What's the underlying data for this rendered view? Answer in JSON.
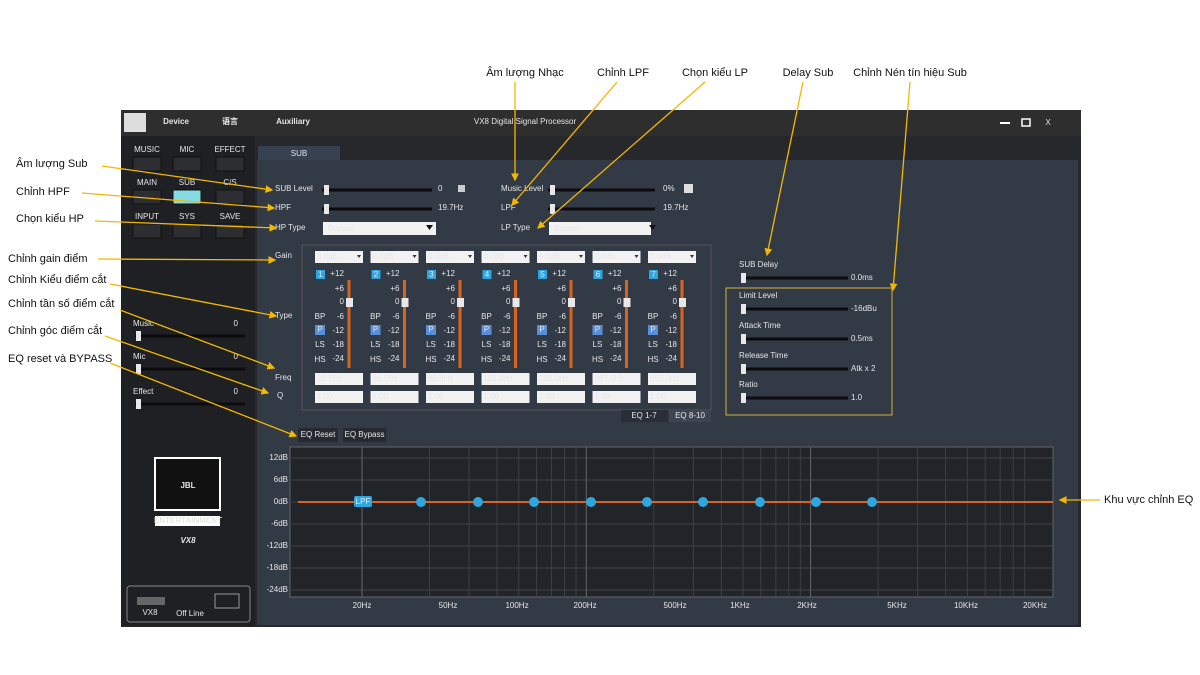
{
  "annotations": [
    "Âm lượng Nhạc",
    "Chỉnh LPF",
    "Chọn kiểu LP",
    "Delay Sub",
    "Chỉnh Nén tín hiệu Sub",
    "Âm lượng Sub",
    "Chỉnh HPF",
    "Chọn kiểu HP",
    "Chỉnh gain điểm",
    "Chỉnh Kiểu điểm cắt",
    "Chỉnh tần số điểm cắt",
    "Chỉnh góc điểm cắt",
    "EQ reset và BYPASS",
    "Khu vực chỉnh EQ"
  ],
  "window": {
    "title": "VX8  Digital Signal Processor",
    "menu": [
      "Device",
      "语言",
      "Auxiliary"
    ],
    "close": "X"
  },
  "sidebar": {
    "buttons": [
      "MUSIC",
      "MIC",
      "EFFECT",
      "MAIN",
      "SUB",
      "C/S",
      "INPUT",
      "SYS",
      "SAVE"
    ],
    "sliders": [
      {
        "label": "Music",
        "value": "0"
      },
      {
        "label": "Mic",
        "value": "0"
      },
      {
        "label": "Effect",
        "value": "0"
      }
    ],
    "logo": {
      "brand": "JBL",
      "line": "ENTERTAINMENT",
      "model": "VX8"
    },
    "status": {
      "device": "VX8",
      "state": "Off Line"
    }
  },
  "tab": "SUB",
  "controls": [
    {
      "label": "SUB Level",
      "value": "0"
    },
    {
      "label": "HPF",
      "value": "19.7Hz"
    },
    {
      "label": "HP Type",
      "value": "Bypass"
    },
    {
      "label": "Music Level",
      "value": "0%"
    },
    {
      "label": "LPF",
      "value": "19.7Hz"
    },
    {
      "label": "LP Type",
      "value": "Bypass"
    }
  ],
  "eq": {
    "row_labels": [
      "Gain",
      "Type",
      "Freq",
      "Q"
    ],
    "scale": [
      "+12",
      "+6",
      "0",
      "-6",
      "-12",
      "-18",
      "-24"
    ],
    "types": [
      "BP",
      "P",
      "LS",
      "HS"
    ],
    "bands": [
      {
        "number": "1",
        "gain": "0.0dB",
        "freq": "20.5Hz",
        "q": "1.00"
      },
      {
        "number": "2",
        "gain": "0.0dB",
        "freq": "36.5Hz",
        "q": "1.00"
      },
      {
        "number": "3",
        "gain": "0.0dB",
        "freq": "65.0Hz",
        "q": "1.00"
      },
      {
        "number": "4",
        "gain": "0.0dB",
        "freq": "116.0Hz",
        "q": "1.00"
      },
      {
        "number": "5",
        "gain": "0.0dB",
        "freq": "206.0Hz",
        "q": "1.00"
      },
      {
        "number": "6",
        "gain": "0.0dB",
        "freq": "367.0Hz",
        "q": "1.00"
      },
      {
        "number": "7",
        "gain": "0.0dB",
        "freq": "655.0Hz",
        "q": "1.00"
      }
    ],
    "tabs": [
      "EQ 1-7",
      "EQ 8-10"
    ],
    "buttons": [
      "EQ Reset",
      "EQ Bypass"
    ]
  },
  "limiter": [
    {
      "label": "SUB Delay",
      "value": "0.0ms"
    },
    {
      "label": "Limit Level",
      "value": "-16dBu"
    },
    {
      "label": "Attack Time",
      "value": "0.5ms"
    },
    {
      "label": "Release Time",
      "value": "Atk x 2"
    },
    {
      "label": "Ratio",
      "value": "1.0"
    }
  ],
  "graph": {
    "y_labels": [
      "12dB",
      "6dB",
      "0dB",
      "-6dB",
      "-12dB",
      "-18dB",
      "-24dB"
    ],
    "x_labels": [
      "20Hz",
      "50Hz",
      "100Hz",
      "200Hz",
      "500Hz",
      "1KHz",
      "2KHz",
      "5KHz",
      "10KHz",
      "20KHz"
    ],
    "marker": "LPF"
  }
}
